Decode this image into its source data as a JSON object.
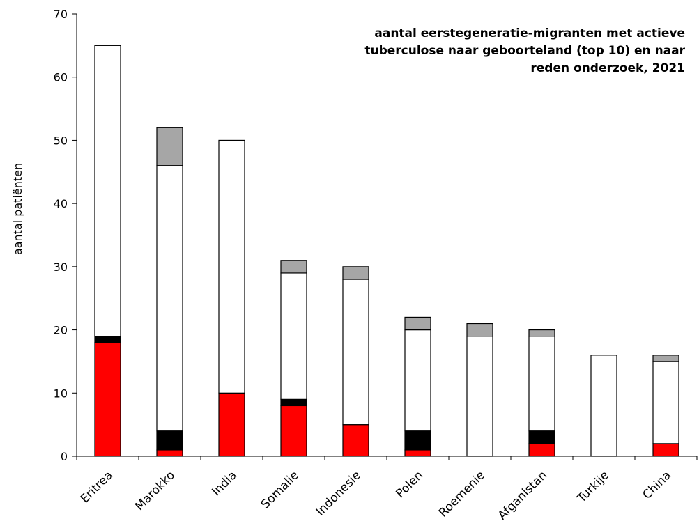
{
  "chart_data": {
    "type": "bar",
    "stacked": true,
    "title_lines": [
      "aantal eerstegeneratie-migranten met actieve",
      "tuberculose naar geboorteland (top 10) en naar",
      "reden onderzoek, 2021"
    ],
    "ylabel": "aantal patiënten",
    "ylim": [
      0,
      70
    ],
    "yticks": [
      "0",
      "10",
      "20",
      "30",
      "40",
      "50",
      "60",
      "70"
    ],
    "legend": "none",
    "grid": false,
    "categories": [
      "Eritrea",
      "Marokko",
      "India",
      "Somalie",
      "Indonesie",
      "Polen",
      "Roemenie",
      "Afganistan",
      "Turkije",
      "China"
    ],
    "series": [
      {
        "color": "#ff0000",
        "values": [
          18,
          1,
          10,
          8,
          5,
          1,
          0,
          2,
          0,
          2
        ]
      },
      {
        "color": "#000000",
        "values": [
          1,
          3,
          0,
          1,
          0,
          3,
          0,
          2,
          0,
          0
        ]
      },
      {
        "color": "#ffffff",
        "values": [
          46,
          42,
          40,
          20,
          23,
          16,
          19,
          15,
          16,
          13
        ]
      },
      {
        "color": "#a6a6a6",
        "values": [
          0,
          6,
          0,
          2,
          2,
          2,
          2,
          1,
          0,
          1
        ]
      }
    ]
  }
}
